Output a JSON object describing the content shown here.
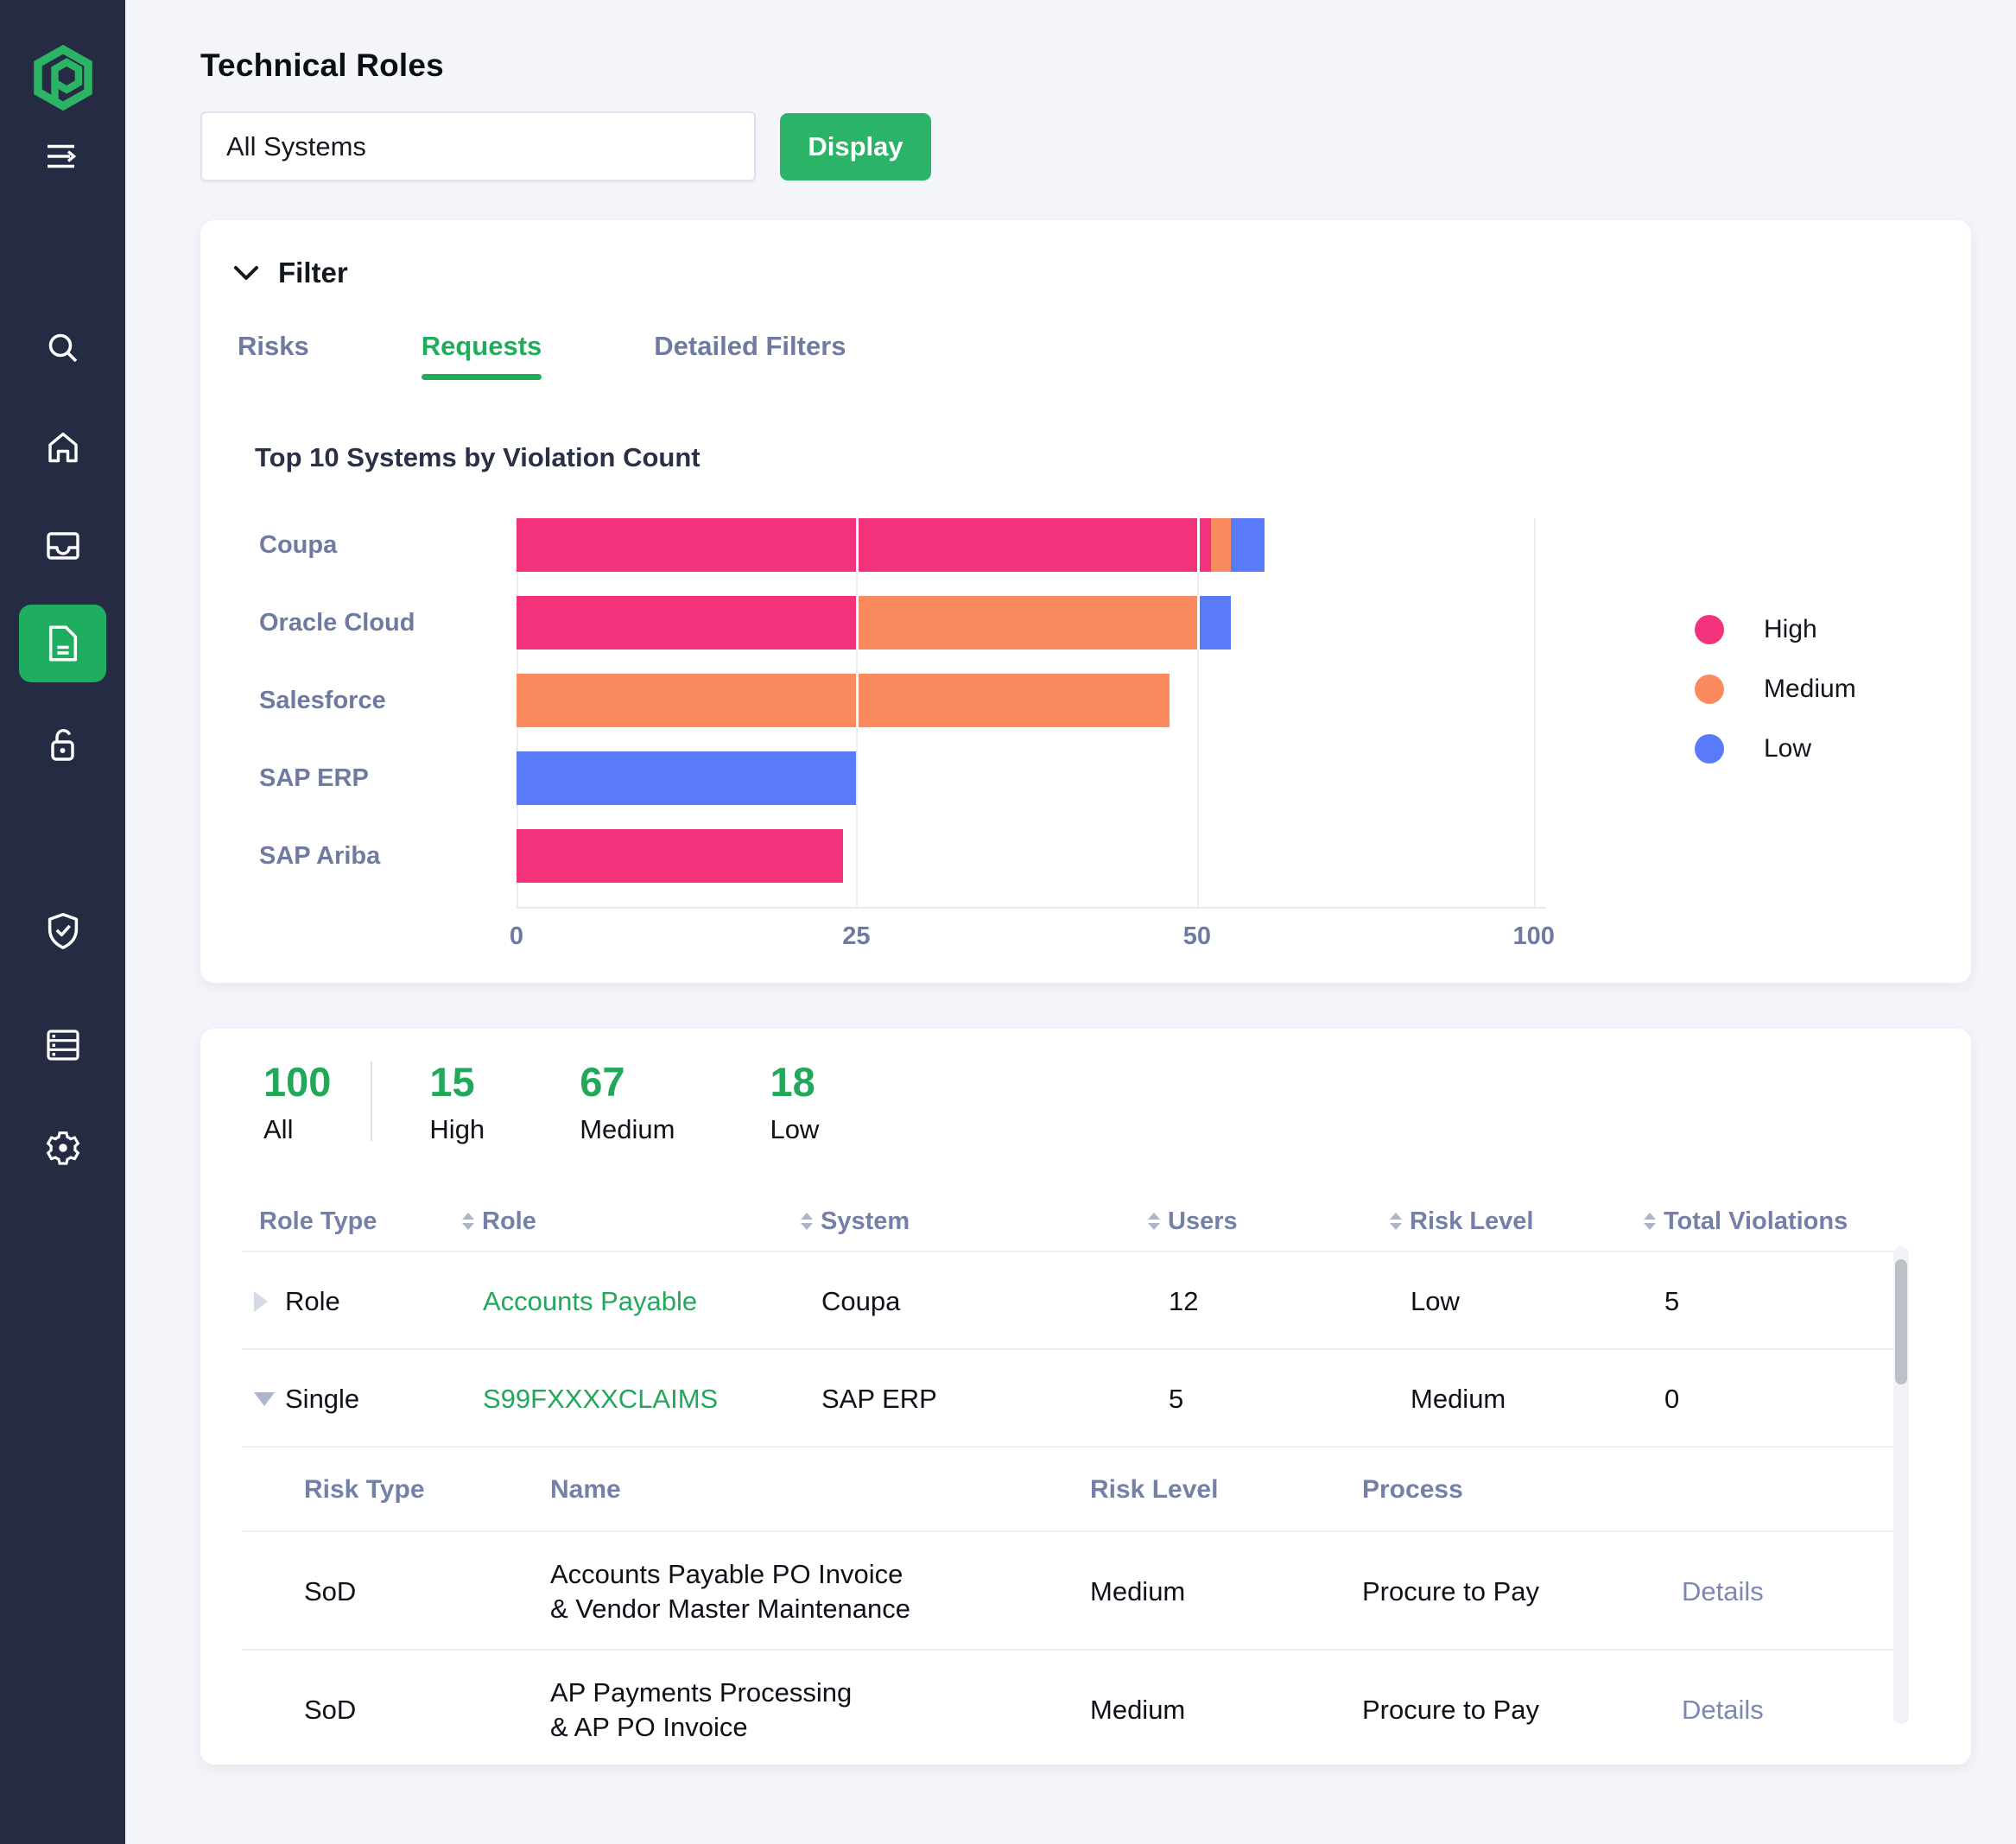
{
  "app": {
    "title": "Technical Roles"
  },
  "theme": {
    "accent_green": "#1FAD5C",
    "sidebar_bg": "#242B43",
    "risk_high": "#F3327B",
    "risk_medium": "#FB8A5E",
    "risk_low": "#5A7BF9"
  },
  "sidebar": {
    "logo": "pathlock-logo",
    "items": [
      {
        "name": "collapse-menu"
      },
      {
        "name": "search"
      },
      {
        "name": "home"
      },
      {
        "name": "inbox"
      },
      {
        "name": "documents",
        "active": true
      },
      {
        "name": "unlock"
      },
      {
        "name": "shield-check"
      },
      {
        "name": "servers"
      },
      {
        "name": "settings"
      }
    ]
  },
  "controls": {
    "system_select_value": "All Systems",
    "display_button": "Display"
  },
  "filter": {
    "title": "Filter",
    "tabs": [
      {
        "label": "Risks",
        "active": false
      },
      {
        "label": "Requests",
        "active": true
      },
      {
        "label": "Detailed Filters",
        "active": false
      }
    ]
  },
  "chart_data": {
    "type": "bar",
    "orientation": "horizontal-stacked",
    "title": "Top 10 Systems by Violation Count",
    "categories": [
      "Coupa",
      "Oracle Cloud",
      "Salesforce",
      "SAP ERP",
      "SAP Ariba"
    ],
    "series": [
      {
        "name": "High",
        "color": "#F3327B",
        "values": [
          52,
          25,
          0,
          0,
          24
        ]
      },
      {
        "name": "Medium",
        "color": "#FB8A5E",
        "values": [
          3,
          25,
          48,
          0,
          0
        ]
      },
      {
        "name": "Low",
        "color": "#5A7BF9",
        "values": [
          5,
          5,
          0,
          25,
          0
        ]
      }
    ],
    "x_ticks": [
      {
        "label": "0",
        "pos": 0
      },
      {
        "label": "25",
        "pos": 33.0
      },
      {
        "label": "50",
        "pos": 66.1
      },
      {
        "label": "100",
        "pos": 98.8
      }
    ],
    "grid": true,
    "legend_position": "right",
    "legend": [
      "High",
      "Medium",
      "Low"
    ]
  },
  "summary": {
    "stats": [
      {
        "value": "100",
        "label": "All"
      },
      {
        "value": "15",
        "label": "High"
      },
      {
        "value": "67",
        "label": "Medium"
      },
      {
        "value": "18",
        "label": "Low"
      }
    ]
  },
  "roles_table": {
    "columns": [
      {
        "label": "Role Type",
        "sortable": false
      },
      {
        "label": "Role",
        "sortable": true
      },
      {
        "label": "System",
        "sortable": true
      },
      {
        "label": "Users",
        "sortable": true
      },
      {
        "label": "Risk Level",
        "sortable": true
      },
      {
        "label": "Total Violations",
        "sortable": true
      }
    ],
    "rows": [
      {
        "expanded": false,
        "role_type": "Role",
        "role": "Accounts Payable",
        "system": "Coupa",
        "users": "12",
        "risk_level": "Low",
        "total_violations": "5"
      },
      {
        "expanded": true,
        "role_type": "Single",
        "role": "S99FXXXXCLAIMS",
        "system": "SAP ERP",
        "users": "5",
        "risk_level": "Medium",
        "total_violations": "0"
      }
    ],
    "risk_details": {
      "columns": [
        "Risk Type",
        "Name",
        "Risk Level",
        "Process"
      ],
      "rows": [
        {
          "risk_type": "SoD",
          "name": "Accounts Payable PO Invoice\n& Vendor Master Maintenance",
          "risk_level": "Medium",
          "process": "Procure to Pay",
          "action": "Details"
        },
        {
          "risk_type": "SoD",
          "name": "AP Payments Processing\n& AP PO Invoice",
          "risk_level": "Medium",
          "process": "Procure to Pay",
          "action": "Details"
        }
      ]
    }
  }
}
